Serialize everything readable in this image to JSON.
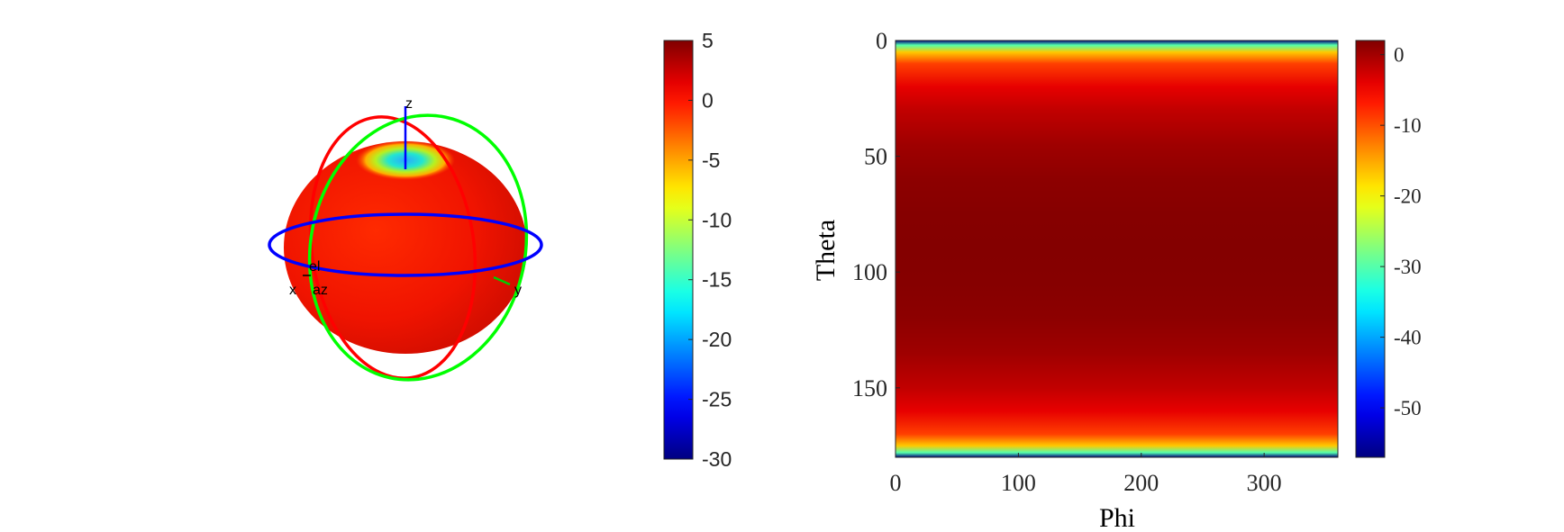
{
  "chart_data": [
    {
      "type": "surface",
      "projection": "3d",
      "description_labels": {
        "axes": [
          "x",
          "y",
          "z"
        ],
        "angles": [
          "az",
          "el"
        ]
      },
      "ring_colors": {
        "azimuth": "#0000ff",
        "elevation_xz": "#ff0000",
        "elevation_yz": "#00ff00"
      },
      "colorbar": {
        "ticks": [
          5,
          0,
          -5,
          -10,
          -15,
          -20,
          -25,
          -30
        ],
        "range": [
          -30,
          5
        ],
        "colormap": "jet"
      }
    },
    {
      "type": "heatmap",
      "xlabel": "Phi",
      "ylabel": "Theta",
      "xticks": [
        0,
        100,
        200,
        300
      ],
      "yticks": [
        0,
        50,
        100,
        150
      ],
      "xlim": [
        0,
        360
      ],
      "ylim": [
        0,
        180
      ],
      "y_direction": "reversed",
      "theta_profile_db": [
        [
          0,
          -57
        ],
        [
          2,
          -30
        ],
        [
          5,
          -17
        ],
        [
          10,
          -9
        ],
        [
          20,
          -4
        ],
        [
          30,
          -1.8
        ],
        [
          45,
          0.2
        ],
        [
          60,
          1.2
        ],
        [
          75,
          1.6
        ],
        [
          90,
          1.76
        ],
        [
          105,
          1.6
        ],
        [
          120,
          1.2
        ],
        [
          135,
          0.2
        ],
        [
          150,
          -1.8
        ],
        [
          160,
          -4
        ],
        [
          170,
          -9
        ],
        [
          175,
          -17
        ],
        [
          178,
          -30
        ],
        [
          180,
          -57
        ]
      ],
      "colorbar": {
        "ticks": [
          0,
          -10,
          -20,
          -30,
          -40,
          -50
        ],
        "range": [
          -57,
          2
        ],
        "colormap": "jet"
      }
    }
  ]
}
